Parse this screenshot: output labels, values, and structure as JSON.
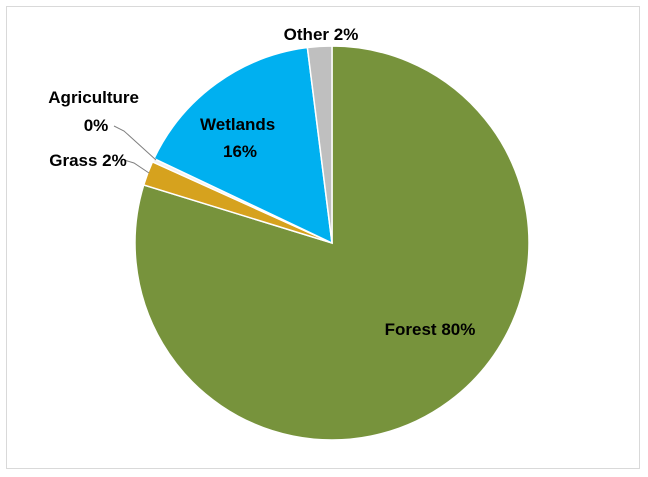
{
  "chart_data": {
    "type": "pie",
    "title": "",
    "categories": [
      "Forest",
      "Grass",
      "Agriculture",
      "Wetlands",
      "Other"
    ],
    "values": [
      80,
      2,
      0.3,
      16,
      2
    ],
    "series": [
      {
        "name": "",
        "values": [
          80,
          2,
          0.3,
          16,
          2
        ]
      }
    ],
    "data_labels": [
      "Forest 80%",
      "Grass 2%",
      "Agriculture 0%",
      "Wetlands 16%",
      "Other 2%"
    ],
    "colors": [
      "#77933c",
      "#d6a21e",
      "#f2f2f2",
      "#00b0f0",
      "#bfbfbf"
    ],
    "start_angle": "12 o'clock",
    "direction": "clockwise",
    "legend": "none"
  }
}
